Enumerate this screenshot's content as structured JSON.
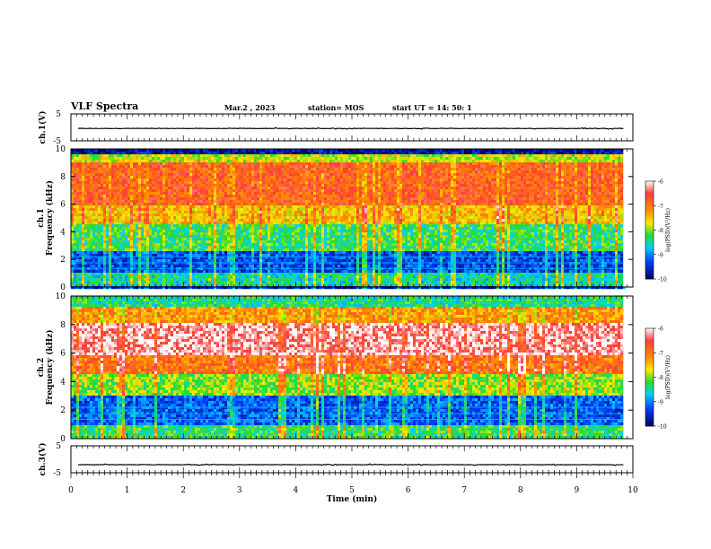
{
  "header": {
    "title": "VLF Spectra",
    "date": "Mar.2 , 2023",
    "station": "station= MOS",
    "start_ut": "start UT = 14: 50: 1"
  },
  "colormap": [
    "#ffffff",
    "#ff2a2a",
    "#ff8800",
    "#ffee00",
    "#22dd22",
    "#00d0ff",
    "#0040ff",
    "#000060"
  ],
  "chart_data": [
    {
      "id": "voltage-ch1",
      "type": "line",
      "ylabel": "ch.1(V)",
      "ylim": [
        -5,
        5
      ],
      "yticks": [
        5,
        -5
      ],
      "xlim": [
        0,
        10
      ],
      "series": [
        {
          "values": [
            -0.4,
            -0.4,
            -0.4,
            -0.4,
            -0.4,
            -0.4,
            -0.4,
            -0.4,
            -0.4,
            -0.4,
            -0.4
          ]
        }
      ]
    },
    {
      "id": "spectrogram-ch1",
      "type": "heatmap",
      "ylabel": "ch.1\nFrequency (kHz)",
      "ylim": [
        0,
        10
      ],
      "yticks": [
        0,
        2,
        4,
        6,
        8,
        10
      ],
      "xlim": [
        0,
        9.83
      ],
      "description_bands_khz": [
        [
          0,
          1.0,
          -8.5
        ],
        [
          1.0,
          2.6,
          -9.3
        ],
        [
          2.6,
          4.5,
          -8.3
        ],
        [
          4.5,
          6.0,
          -7.5
        ],
        [
          6.0,
          9.0,
          -6.8
        ],
        [
          9.0,
          9.6,
          -7.8
        ],
        [
          9.6,
          10,
          -9.7
        ]
      ],
      "colorbar": {
        "label": "log(PSD)(V²/Hz)",
        "min": -10,
        "max": -6,
        "ticks": [
          -6,
          -7,
          -8,
          -9,
          -10
        ]
      }
    },
    {
      "id": "spectrogram-ch2",
      "type": "heatmap",
      "ylabel": "ch.2\nFrequency (kHz)",
      "ylim": [
        0,
        10
      ],
      "yticks": [
        0,
        2,
        4,
        6,
        8,
        10
      ],
      "xlim": [
        0,
        9.83
      ],
      "description_bands_khz": [
        [
          0,
          1.0,
          -8.3
        ],
        [
          1.0,
          3.0,
          -9.2
        ],
        [
          3.0,
          4.5,
          -8.0
        ],
        [
          4.5,
          5.8,
          -7.0
        ],
        [
          5.8,
          8.2,
          -6.2
        ],
        [
          8.2,
          9.2,
          -7.2
        ],
        [
          9.2,
          10,
          -8.4
        ]
      ],
      "colorbar": {
        "label": "log(PSD)(V²/Hz)",
        "min": -10,
        "max": -6,
        "ticks": [
          -6,
          -7,
          -8,
          -9,
          -10
        ]
      }
    },
    {
      "id": "voltage-ch3",
      "type": "line",
      "ylabel": "ch.3(V)",
      "ylim": [
        -5,
        5
      ],
      "yticks": [
        5,
        -5
      ],
      "xlim": [
        0,
        10
      ],
      "series": [
        {
          "values": [
            -2.0,
            -2.0,
            -2.0,
            -2.0,
            -2.0,
            -2.0,
            -2.0,
            -2.0,
            -2.0,
            -2.0,
            -2.0
          ]
        }
      ]
    }
  ],
  "xaxis": {
    "label": "Time (min)",
    "ticks": [
      0,
      1,
      2,
      3,
      4,
      5,
      6,
      7,
      8,
      9,
      10
    ]
  }
}
